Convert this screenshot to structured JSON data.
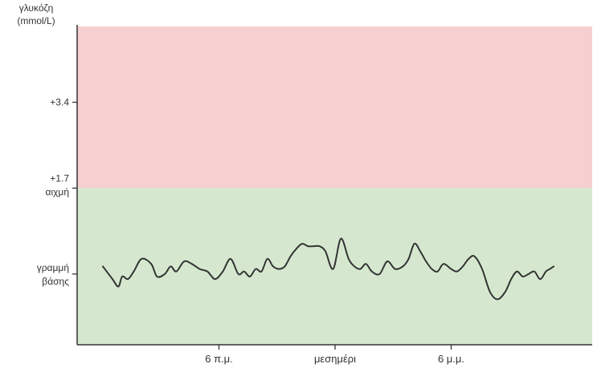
{
  "chart_data": {
    "type": "line",
    "title": "",
    "ylabel": [
      "γλυκόζη",
      "(mmol/L)"
    ],
    "xlabel": "",
    "x_ticks": [
      "6 π.μ.",
      "μεσημέρι",
      "6 μ.μ."
    ],
    "y_ticks": [
      {
        "value": 3.4,
        "label": [
          "+3.4"
        ]
      },
      {
        "value": 1.7,
        "label": [
          "+1.7",
          "αιχμή"
        ]
      },
      {
        "value": 0,
        "label": [
          "γραμμή",
          "βάσης"
        ]
      }
    ],
    "ylim": [
      -1.4,
      4.9
    ],
    "xlim": [
      0,
      24
    ],
    "bands": [
      {
        "name": "",
        "from": 1.7,
        "to": 4.9,
        "color": "#f6cfd0"
      },
      {
        "name": "",
        "from": -1.4,
        "to": 1.7,
        "color": "#d5e8cf"
      }
    ],
    "series": [
      {
        "color": "#333333",
        "x": [
          0,
          0.5,
          0.8,
          1.0,
          1.3,
          1.6,
          2.0,
          2.5,
          2.8,
          3.2,
          3.5,
          3.8,
          4.2,
          4.6,
          5.0,
          5.4,
          5.8,
          6.2,
          6.6,
          7.0,
          7.3,
          7.6,
          7.9,
          8.2,
          8.5,
          8.8,
          9.1,
          9.4,
          9.7,
          10.0,
          10.3,
          10.6,
          10.9,
          11.2,
          11.5,
          11.9,
          12.3,
          12.7,
          13.0,
          13.3,
          13.6,
          13.9,
          14.3,
          14.7,
          15.1,
          15.5,
          15.8,
          16.1,
          16.4,
          16.7,
          17.0,
          17.3,
          17.6,
          18.0,
          18.3,
          18.6,
          18.9,
          19.2,
          19.6,
          20.0,
          20.4,
          20.8,
          21.1,
          21.4,
          21.7,
          22.0,
          22.3,
          22.6,
          22.9,
          23.1,
          23.3
        ],
        "values": [
          0.15,
          -0.1,
          -0.25,
          -0.05,
          -0.1,
          0.05,
          0.3,
          0.2,
          -0.05,
          0.0,
          0.15,
          0.05,
          0.25,
          0.2,
          0.1,
          0.05,
          -0.1,
          0.05,
          0.3,
          0.0,
          0.05,
          -0.05,
          0.1,
          0.05,
          0.3,
          0.15,
          0.1,
          0.15,
          0.35,
          0.5,
          0.6,
          0.55,
          0.55,
          0.55,
          0.45,
          0.1,
          0.7,
          0.3,
          0.15,
          0.1,
          0.2,
          0.05,
          0.0,
          0.25,
          0.1,
          0.15,
          0.3,
          0.6,
          0.45,
          0.25,
          0.1,
          0.05,
          0.2,
          0.1,
          0.05,
          0.15,
          0.3,
          0.35,
          0.1,
          -0.35,
          -0.5,
          -0.35,
          -0.1,
          0.05,
          -0.05,
          0.0,
          0.05,
          -0.1,
          0.05,
          0.1,
          0.15
        ]
      }
    ]
  }
}
